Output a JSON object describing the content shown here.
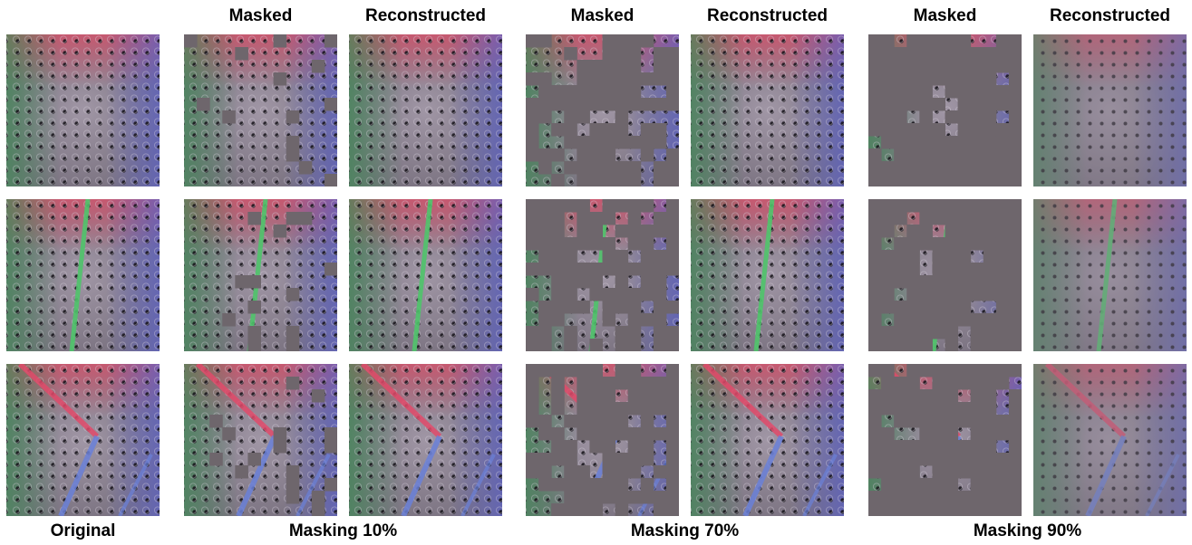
{
  "column_headers": [
    "Masked",
    "Reconstructed",
    "Masked",
    "Reconstructed",
    "Masked",
    "Reconstructed"
  ],
  "group_labels": [
    "Original",
    "Masking 10%",
    "Masking 70%",
    "Masking 90%"
  ]
}
